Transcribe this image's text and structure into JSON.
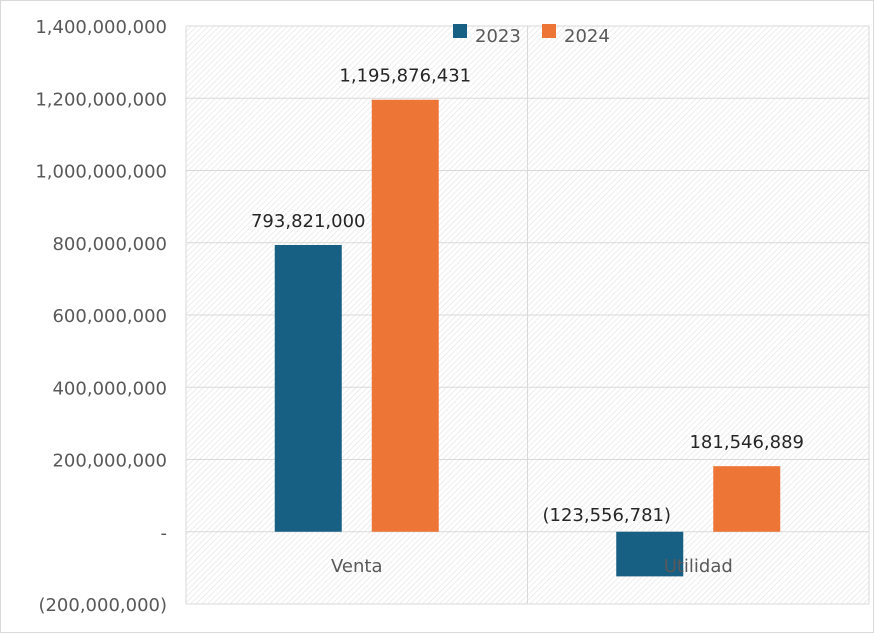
{
  "chart_data": {
    "type": "bar",
    "categories": [
      "Venta",
      "Utilidad"
    ],
    "series": [
      {
        "name": "2023",
        "values": [
          793821000,
          -123556781
        ],
        "labels": [
          "793,821,000",
          "(123,556,781)"
        ],
        "color": "#175f83"
      },
      {
        "name": "2024",
        "values": [
          1195876431,
          181546889
        ],
        "labels": [
          "1,195,876,431",
          "181,546,889"
        ],
        "color": "#ed7536"
      }
    ],
    "ylim": [
      -200000000,
      1400000000
    ],
    "yticks": [
      1400000000,
      1200000000,
      1000000000,
      800000000,
      600000000,
      400000000,
      200000000,
      0,
      -200000000
    ],
    "ytick_labels": [
      "1,400,000,000",
      "1,200,000,000",
      "1,000,000,000",
      "800,000,000",
      "600,000,000",
      "400,000,000",
      "200,000,000",
      "-",
      "(200,000,000)"
    ],
    "grid": true,
    "legend_position": "top-center",
    "title": "",
    "xlabel": "",
    "ylabel": ""
  },
  "colors": {
    "gridline": "#d9d9d9",
    "plot_hatch": "#e2e2e2"
  }
}
